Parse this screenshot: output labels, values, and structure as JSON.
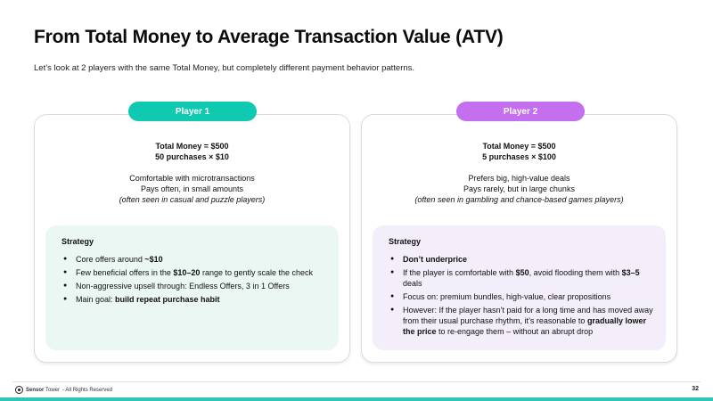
{
  "title": "From Total Money to Average Transaction Value (ATV)",
  "subtitle": "Let’s look at 2 players with the same Total Money, but completely different payment behavior patterns.",
  "colors": {
    "player1_accent": "#0fc9b1",
    "player2_accent": "#c46ef0",
    "player1_panel": "#ebf7f3",
    "player2_panel": "#f4eefb",
    "bottom_bar": "#2ec4b6"
  },
  "player1": {
    "pill": "Player 1",
    "total": "Total Money = $500",
    "purchases": "50 purchases × $10",
    "desc1": "Comfortable with microtransactions",
    "desc2": "Pays often, in small amounts",
    "note": "(often seen in casual and puzzle players)",
    "strategy_head": "Strategy",
    "b1_text": "Core offers around ",
    "b1_bold": "~$10",
    "b2_text1": "Few beneficial offers in the ",
    "b2_bold": "$10–20",
    "b2_text2": " range to gently scale the check",
    "b3_text": "Non-aggressive upsell through: Endless Offers, 3 in 1 Offers",
    "b4_text": "Main goal: ",
    "b4_bold": "build repeat purchase habit"
  },
  "player2": {
    "pill": "Player 2",
    "total": "Total Money = $500",
    "purchases": "5 purchases × $100",
    "desc1": "Prefers big, high-value deals",
    "desc2": "Pays rarely, but in large chunks",
    "note": "(often seen in gambling and chance-based games players)",
    "strategy_head": "Strategy",
    "b1_bold": "Don’t underprice",
    "b2_text1": "If the player is comfortable with ",
    "b2_bold1": "$50",
    "b2_text2": ", avoid flooding them with ",
    "b2_bold2": "$3–5",
    "b2_text3": " deals",
    "b3_text": "Focus on: premium bundles, high-value, clear propositions",
    "b4_text1": "However: If the player hasn’t paid for a long time and has moved away from their usual purchase rhythm, it’s reasonable to ",
    "b4_bold": "gradually lower the price",
    "b4_text2": " to re-engage them – without an abrupt drop"
  },
  "footer": {
    "logo_icon": "sensor-tower-logo-icon",
    "brand": "Sensor",
    "brand2": "Tower",
    "rights": "- All Rights Reserved",
    "page": "32"
  }
}
